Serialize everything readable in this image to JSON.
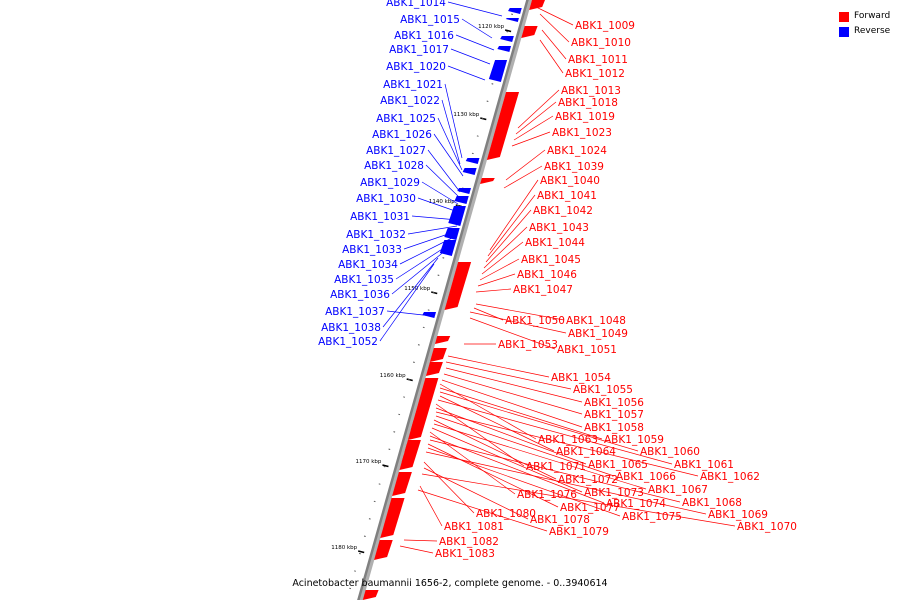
{
  "caption": "Acinetobacter baumannii 1656-2, complete genome. - 0..3940614",
  "legend": [
    {
      "label": "Forward",
      "color": "#ff0000"
    },
    {
      "label": "Reverse",
      "color": "#0000ff"
    }
  ],
  "colors": {
    "forward": "#ff0000",
    "reverse": "#0000ff",
    "backbone": "#808080"
  },
  "ticks": [
    "1120 kbp",
    "1130 kbp",
    "1140 kbp",
    "1150 kbp",
    "1160 kbp",
    "1170 kbp",
    "1180 kbp"
  ],
  "reverse_genes": [
    "ABK1_1014",
    "ABK1_1015",
    "ABK1_1016",
    "ABK1_1017",
    "ABK1_1020",
    "ABK1_1021",
    "ABK1_1022",
    "ABK1_1025",
    "ABK1_1026",
    "ABK1_1027",
    "ABK1_1028",
    "ABK1_1029",
    "ABK1_1030",
    "ABK1_1031",
    "ABK1_1032",
    "ABK1_1033",
    "ABK1_1034",
    "ABK1_1035",
    "ABK1_1036",
    "ABK1_1037",
    "ABK1_1038",
    "ABK1_1052"
  ],
  "forward_genes": [
    "ABK1_1009",
    "ABK1_1010",
    "ABK1_1011",
    "ABK1_1012",
    "ABK1_1013",
    "ABK1_1018",
    "ABK1_1019",
    "ABK1_1023",
    "ABK1_1024",
    "ABK1_1039",
    "ABK1_1040",
    "ABK1_1041",
    "ABK1_1042",
    "ABK1_1043",
    "ABK1_1044",
    "ABK1_1045",
    "ABK1_1046",
    "ABK1_1047",
    "ABK1_1050",
    "ABK1_1048",
    "ABK1_1049",
    "ABK1_1051",
    "ABK1_1053",
    "ABK1_1054",
    "ABK1_1055",
    "ABK1_1056",
    "ABK1_1057",
    "ABK1_1058",
    "ABK1_1063",
    "ABK1_1059",
    "ABK1_1060",
    "ABK1_1064",
    "ABK1_1061",
    "ABK1_1071",
    "ABK1_1065",
    "ABK1_1062",
    "ABK1_1066",
    "ABK1_1072",
    "ABK1_1067",
    "ABK1_1073",
    "ABK1_1076",
    "ABK1_1074",
    "ABK1_1068",
    "ABK1_1077",
    "ABK1_1075",
    "ABK1_1069",
    "ABK1_1080",
    "ABK1_1078",
    "ABK1_1070",
    "ABK1_1081",
    "ABK1_1079",
    "ABK1_1082",
    "ABK1_1083"
  ]
}
